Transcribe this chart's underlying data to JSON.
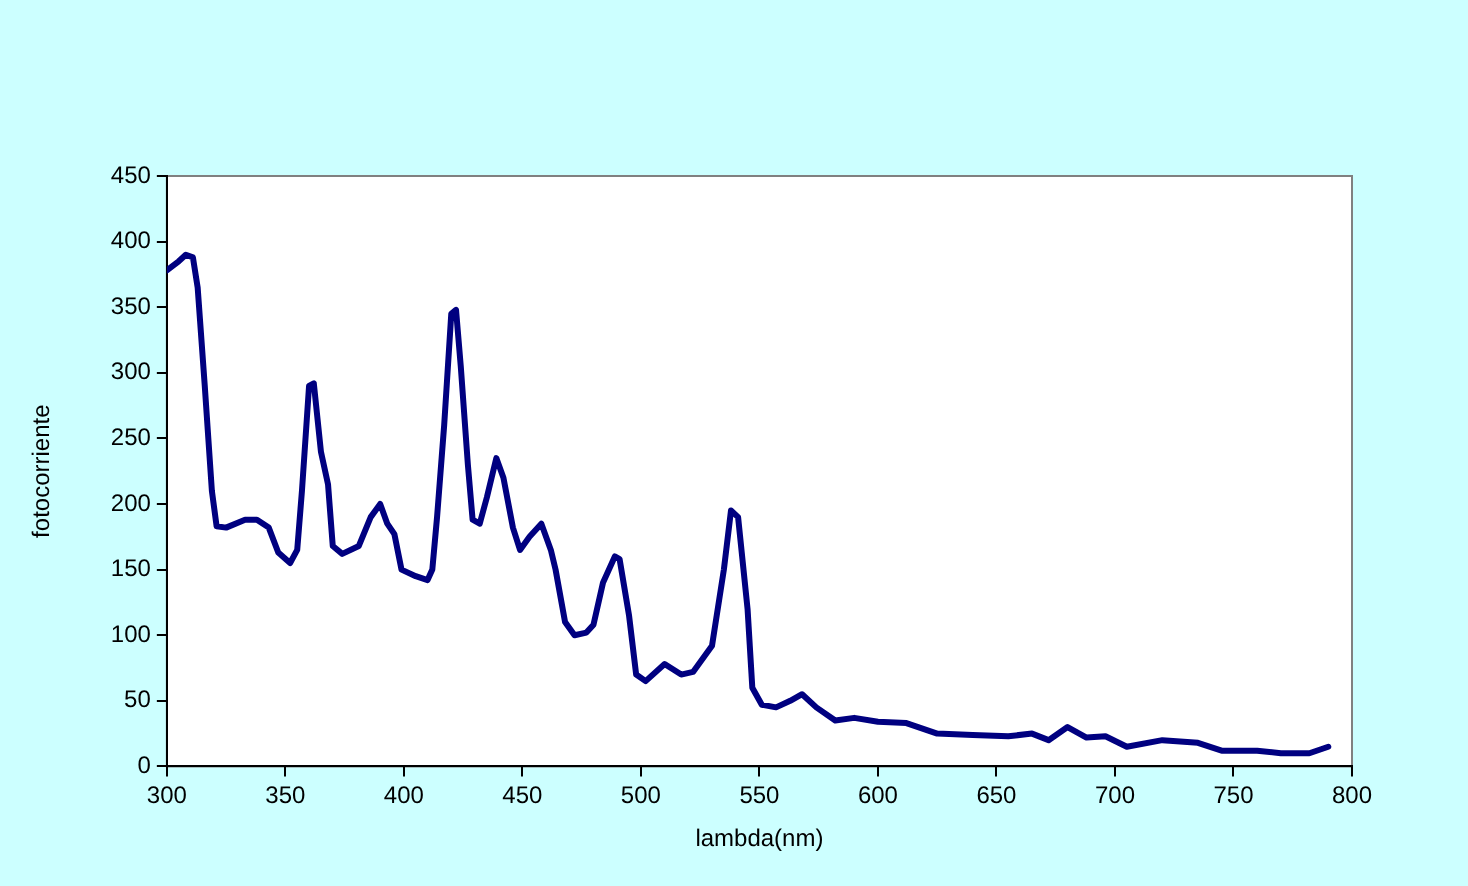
{
  "chart_data": {
    "type": "line",
    "xlabel": "lambda(nm)",
    "ylabel": "fotocorriente",
    "xlim": [
      300,
      800
    ],
    "xticks": [
      300,
      350,
      400,
      450,
      500,
      550,
      600,
      650,
      700,
      750,
      800
    ],
    "ylim": [
      0,
      450
    ],
    "yticks": [
      0,
      50,
      100,
      150,
      200,
      250,
      300,
      350,
      400,
      450
    ],
    "grid": false,
    "legend": false,
    "marker": "none",
    "line_style": "solid",
    "series": [
      {
        "color": "#000080",
        "x": [
          300,
          305,
          308,
          311,
          313,
          316,
          319,
          321,
          325,
          333,
          338,
          343,
          347,
          352,
          355,
          357,
          360,
          362,
          365,
          368,
          370,
          374,
          381,
          386,
          390,
          393,
          396,
          399,
          405,
          410,
          412,
          414,
          417,
          420,
          422,
          424,
          427,
          429,
          432,
          435,
          439,
          442,
          446,
          449,
          453,
          458,
          462,
          464,
          468,
          472,
          477,
          480,
          484,
          489,
          491,
          495,
          498,
          502,
          510,
          517,
          522,
          530,
          535,
          538,
          541,
          545,
          547,
          551,
          557,
          563,
          568,
          574,
          582,
          590,
          600,
          612,
          625,
          640,
          655,
          665,
          672,
          680,
          688,
          696,
          705,
          720,
          735,
          745,
          760,
          770,
          782,
          790
        ],
        "values": [
          378,
          385,
          390,
          388,
          365,
          290,
          210,
          183,
          182,
          188,
          188,
          182,
          163,
          155,
          165,
          210,
          290,
          292,
          240,
          215,
          168,
          162,
          168,
          190,
          200,
          185,
          177,
          150,
          145,
          142,
          150,
          190,
          260,
          345,
          348,
          305,
          230,
          188,
          185,
          205,
          235,
          220,
          182,
          165,
          175,
          185,
          165,
          150,
          110,
          100,
          102,
          108,
          140,
          160,
          158,
          115,
          70,
          65,
          78,
          70,
          72,
          92,
          150,
          195,
          190,
          120,
          60,
          47,
          45,
          50,
          55,
          45,
          35,
          37,
          34,
          33,
          25,
          24,
          23,
          25,
          20,
          30,
          22,
          23,
          15,
          20,
          18,
          12,
          12,
          10,
          10,
          15
        ]
      }
    ]
  }
}
